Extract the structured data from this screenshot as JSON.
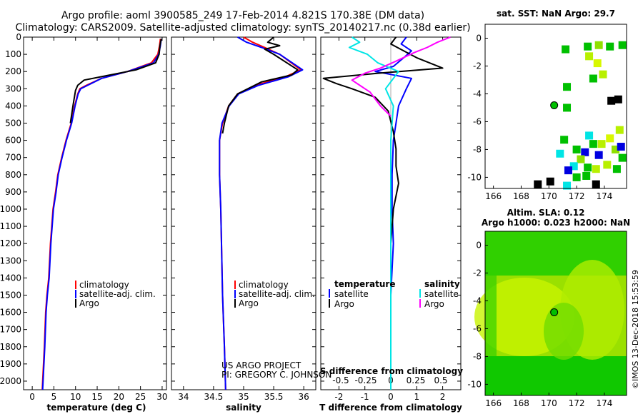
{
  "header": {
    "line1": "Argo profile: aoml 3900585_249 17-Feb-2014 4.821S 170.38E (DM data)",
    "line2": "Climatology: CARS2009. Satellite-adjusted climatology: synTS_20140217.nc (0.38d earlier)"
  },
  "colors": {
    "climatology": "#ff0000",
    "satellite": "#0000ff",
    "argo": "#000000",
    "satellite_s": "#00e5e5",
    "argo_s": "#ff00ff",
    "map_green": "#00c000",
    "map_yellow": "#b8f000"
  },
  "chart_data": [
    {
      "type": "line",
      "name": "temperature",
      "xlabel": "temperature (deg C)",
      "ylabel": "",
      "xlim": [
        -2,
        31
      ],
      "ylim": [
        2050,
        0
      ],
      "x_ticks": [
        0,
        5,
        10,
        15,
        20,
        25,
        30
      ],
      "y_ticks": [
        0,
        100,
        200,
        300,
        400,
        500,
        600,
        700,
        800,
        900,
        1000,
        1100,
        1200,
        1300,
        1400,
        1500,
        1600,
        1700,
        1800,
        1900,
        2000
      ],
      "series": [
        {
          "name": "climatology",
          "color": "#ff0000",
          "x": [
            29.6,
            29.4,
            29.0,
            27.5,
            22,
            16,
            12.5,
            11,
            10.5,
            9.8,
            9,
            7.8,
            6.8,
            5.9,
            5.4,
            4.8,
            4.2,
            3.8,
            3.4,
            3.1,
            2.8,
            2.5,
            2.3
          ],
          "y": [
            10,
            50,
            100,
            150,
            200,
            240,
            280,
            300,
            330,
            400,
            500,
            600,
            700,
            800,
            900,
            1000,
            1200,
            1400,
            1500,
            1600,
            1800,
            1950,
            2050
          ]
        },
        {
          "name": "satellite-adj. clim.",
          "color": "#0000ff",
          "x": [
            29.8,
            29.6,
            29.2,
            28,
            22,
            16,
            12.8,
            11.2,
            10.6,
            9.9,
            9.1,
            7.9,
            6.9,
            6,
            5.5,
            4.9,
            4.3,
            3.9,
            3.5,
            3.2,
            2.9,
            2.6,
            2.4
          ],
          "y": [
            10,
            50,
            100,
            150,
            200,
            240,
            280,
            300,
            330,
            400,
            500,
            600,
            700,
            800,
            900,
            1000,
            1200,
            1400,
            1500,
            1600,
            1800,
            1950,
            2050
          ]
        },
        {
          "name": "Argo",
          "color": "#000000",
          "x": [
            29.8,
            29.5,
            29.3,
            28.5,
            24,
            18,
            12,
            10.5,
            10,
            9.4,
            8.8
          ],
          "y": [
            10,
            50,
            100,
            150,
            190,
            220,
            250,
            280,
            310,
            400,
            500
          ]
        }
      ],
      "legend": [
        "climatology",
        "satellite-adj. clim.",
        "Argo"
      ]
    },
    {
      "type": "line",
      "name": "salinity",
      "xlabel": "salinity",
      "ylabel": "",
      "xlim": [
        33.8,
        36.2
      ],
      "ylim": [
        2050,
        0
      ],
      "x_ticks": [
        34,
        34.5,
        35,
        35.5,
        36
      ],
      "x_tick_labels": [
        "34",
        "34.5",
        "35",
        "35.5",
        "36"
      ],
      "series": [
        {
          "name": "climatology",
          "color": "#ff0000",
          "x": [
            35.0,
            35.15,
            35.35,
            35.6,
            35.95,
            35.7,
            35.2,
            34.9,
            34.75,
            34.65,
            34.6,
            34.6,
            34.62,
            34.65,
            34.68,
            34.7
          ],
          "y": [
            0,
            30,
            60,
            100,
            190,
            230,
            280,
            330,
            400,
            500,
            600,
            800,
            1000,
            1500,
            1800,
            2050
          ]
        },
        {
          "name": "satellite-adj. clim.",
          "color": "#0000ff",
          "x": [
            34.9,
            35.05,
            35.3,
            35.6,
            35.98,
            35.75,
            35.25,
            34.92,
            34.76,
            34.64,
            34.6,
            34.6,
            34.62,
            34.65,
            34.68,
            34.7
          ],
          "y": [
            0,
            30,
            60,
            100,
            190,
            230,
            280,
            330,
            400,
            500,
            600,
            800,
            1000,
            1500,
            1800,
            2050
          ]
        },
        {
          "name": "Argo",
          "color": "#000000",
          "x": [
            35.5,
            35.4,
            35.6,
            35.35,
            35.5,
            35.9,
            35.8,
            35.3,
            34.9,
            34.75,
            34.68,
            34.65
          ],
          "y": [
            0,
            30,
            50,
            70,
            100,
            190,
            220,
            260,
            330,
            400,
            500,
            560
          ]
        }
      ],
      "legend": [
        "climatology",
        "satellite-adj. clim.",
        "Argo"
      ],
      "annotations": [
        "US ARGO PROJECT",
        "PI: GREGORY C. JOHNSON"
      ]
    },
    {
      "type": "line",
      "name": "difference",
      "xlabel": "T difference from climatology",
      "top_xlabel": "S difference from climatology",
      "xlim": [
        -2.7,
        2.7
      ],
      "ylim": [
        2050,
        0
      ],
      "x_ticks": [
        -2,
        -1,
        0,
        1,
        2
      ],
      "top_ticks": [
        -0.5,
        -0.25,
        0,
        0.25,
        0.5
      ],
      "top_tick_labels": [
        "-0.5",
        "-0.25",
        "0",
        "0.25",
        "0.5"
      ],
      "series": [
        {
          "name": "temperature satellite",
          "color": "#0000ff",
          "x": [
            0.6,
            0.4,
            0.8,
            0.5,
            0.1,
            -0.6,
            0.8,
            0.6,
            0.3,
            0.2,
            0.1,
            0.05,
            0.05,
            0.1,
            0.0,
            0.0,
            0.0
          ],
          "y": [
            0,
            40,
            80,
            120,
            170,
            200,
            240,
            300,
            400,
            500,
            600,
            800,
            1000,
            1200,
            1500,
            1800,
            2050
          ]
        },
        {
          "name": "temperature Argo",
          "color": "#000000",
          "x": [
            0.2,
            0.0,
            0.5,
            1.0,
            2.0,
            -0.5,
            -2.6,
            -2.1,
            -1.5,
            -0.6,
            -0.1,
            0.1,
            0.2,
            0.2,
            0.3,
            0.1,
            0.0
          ],
          "y": [
            0,
            40,
            80,
            120,
            180,
            210,
            240,
            270,
            300,
            350,
            430,
            550,
            650,
            750,
            850,
            1000,
            1200
          ]
        },
        {
          "name": "salinity satellite",
          "color": "#00e5e5",
          "x": [
            -1.5,
            -1.2,
            -1.6,
            -0.9,
            -0.5,
            0.3,
            -0.2,
            0.1,
            0.0,
            0.0,
            0.0,
            0.0
          ],
          "y": [
            0,
            30,
            60,
            100,
            150,
            200,
            300,
            400,
            600,
            1000,
            1500,
            2050
          ]
        },
        {
          "name": "salinity Argo",
          "color": "#ff00ff",
          "x": [
            2.3,
            1.8,
            1.4,
            0.9,
            0.2,
            -0.4,
            -1.0,
            -1.5,
            -0.8,
            -0.4,
            0.0
          ],
          "y": [
            0,
            30,
            60,
            90,
            140,
            180,
            210,
            250,
            320,
            400,
            460
          ]
        }
      ],
      "legend": {
        "temperature_title": "temperature",
        "salinity_title": "salinity",
        "items": [
          "satellite",
          "Argo",
          "satellite",
          "Argo"
        ]
      }
    },
    {
      "type": "heatmap",
      "name": "sst_map",
      "title": "sat. SST: NaN Argo: 29.7",
      "x_ticks": [
        166,
        168,
        170,
        172,
        174
      ],
      "y_ticks": [
        0,
        -2,
        -4,
        -6,
        -8,
        -10
      ],
      "xlim": [
        165.4,
        175.6
      ],
      "ylim": [
        -10.8,
        1.0
      ],
      "argo_position": [
        170.38,
        -4.82
      ]
    },
    {
      "type": "heatmap",
      "name": "sla_map",
      "title_line1": "Altim. SLA: 0.12",
      "title_line2": "Argo h1000: 0.023 h2000: NaN",
      "x_ticks": [
        166,
        168,
        170,
        172,
        174
      ],
      "y_ticks": [
        0,
        -2,
        -4,
        -6,
        -8,
        -10
      ],
      "xlim": [
        165.4,
        175.6
      ],
      "ylim": [
        -10.8,
        1.0
      ],
      "argo_position": [
        170.38,
        -4.82
      ]
    }
  ],
  "footer": {
    "credit": "©IMOS 13-Dec-2018 15:53:59"
  }
}
